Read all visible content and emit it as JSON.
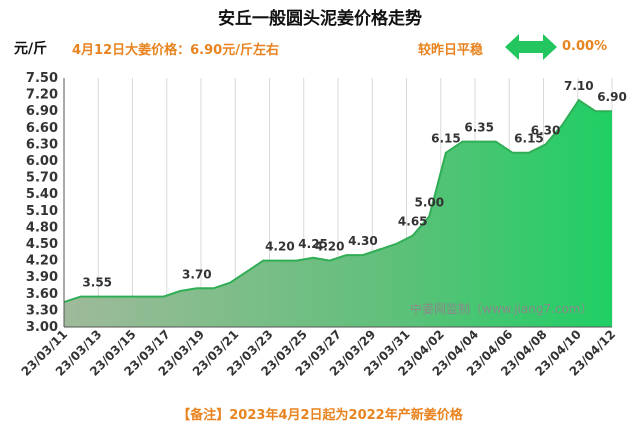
{
  "header": {
    "title": "安丘一般圆头泥姜价格走势",
    "unit_label": "元/斤",
    "price_note": "4月12日大姜价格：6.90元/斤左右",
    "compare_label": "较昨日平稳",
    "compare_value": "0.00%",
    "compare_icon": "double-arrow-icon"
  },
  "footer": {
    "note": "【备注】2023年4月2日起为2022年产新姜价格"
  },
  "watermark": "中姜网监制（www.jiang7.com）",
  "colors": {
    "line": "#2fae55",
    "fill_top": "#1fcf64",
    "fill_bottom": "#9fba9a",
    "accent_text": "#e8831f",
    "arrow": "#22c55e"
  },
  "chart_data": {
    "type": "area",
    "title": "安丘一般圆头泥姜价格走势",
    "ylabel": "元/斤",
    "xlabel": "",
    "ylim": [
      3.0,
      7.5
    ],
    "yticks": [
      "3.00",
      "3.30",
      "3.60",
      "3.90",
      "4.20",
      "4.50",
      "4.80",
      "5.10",
      "5.40",
      "5.70",
      "6.00",
      "6.30",
      "6.60",
      "6.90",
      "7.20",
      "7.50"
    ],
    "xtick_labels": [
      "23/03/11",
      "23/03/13",
      "23/03/15",
      "23/03/17",
      "23/03/19",
      "23/03/21",
      "23/03/23",
      "23/03/25",
      "23/03/27",
      "23/03/29",
      "23/03/31",
      "23/04/02",
      "23/04/04",
      "23/04/06",
      "23/04/08",
      "23/04/10",
      "23/04/12"
    ],
    "grid": "vertical",
    "series": [
      {
        "values": [
          3.45,
          3.55,
          3.55,
          3.55,
          3.55,
          3.55,
          3.55,
          3.65,
          3.7,
          3.7,
          3.8,
          4.0,
          4.2,
          4.2,
          4.2,
          4.25,
          4.2,
          4.3,
          4.3,
          4.4,
          4.5,
          4.65,
          5.0,
          6.15,
          6.35,
          6.35,
          6.35,
          6.15,
          6.15,
          6.3,
          6.65,
          7.1,
          6.9,
          6.9
        ]
      }
    ],
    "data_labels": [
      {
        "index": 2,
        "text": "3.55"
      },
      {
        "index": 8,
        "text": "3.70"
      },
      {
        "index": 13,
        "text": "4.20"
      },
      {
        "index": 15,
        "text": "4.25"
      },
      {
        "index": 16,
        "text": "4.20"
      },
      {
        "index": 18,
        "text": "4.30"
      },
      {
        "index": 21,
        "text": "4.65"
      },
      {
        "index": 22,
        "text": "5.00"
      },
      {
        "index": 23,
        "text": "6.15"
      },
      {
        "index": 25,
        "text": "6.35"
      },
      {
        "index": 28,
        "text": "6.15"
      },
      {
        "index": 29,
        "text": "6.30"
      },
      {
        "index": 31,
        "text": "7.10"
      },
      {
        "index": 33,
        "text": "6.90"
      }
    ]
  }
}
